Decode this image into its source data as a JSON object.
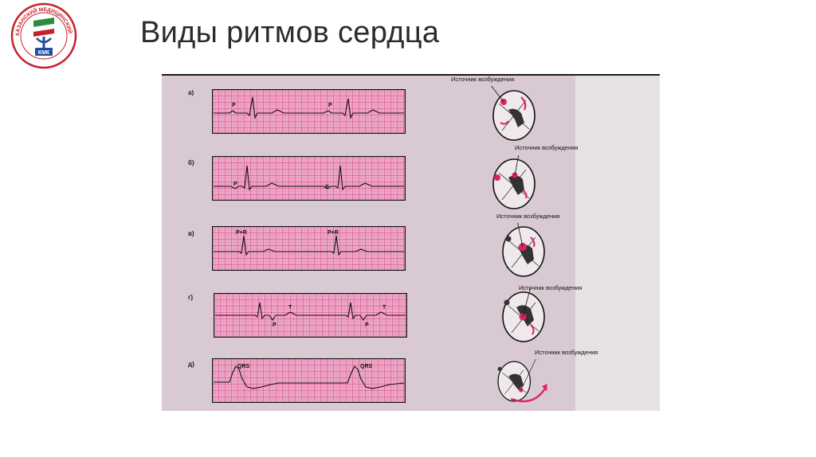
{
  "slide": {
    "title": "Виды ритмов сердца"
  },
  "logo": {
    "arc_text": "КАЗАНСКИЙ МЕДИЦИНСКИЙ КОЛЛЕДЖ",
    "monogram": "КМК"
  },
  "figure": {
    "rows": [
      {
        "letter": "а)",
        "source_label": "Источник возбуждения",
        "wave_labels": [
          "P",
          "P"
        ]
      },
      {
        "letter": "б)",
        "source_label": "Источник возбуждения",
        "wave_labels": [
          "P",
          "P"
        ]
      },
      {
        "letter": "в)",
        "source_label": "Источник возбуждения",
        "wave_labels": [
          "P+R",
          "P+R"
        ]
      },
      {
        "letter": "г)",
        "source_label": "Источник возбуждения",
        "wave_labels": [
          "T",
          "P",
          "T",
          "P"
        ]
      },
      {
        "letter": "д)",
        "source_label": "Источник возбуждения",
        "wave_labels": [
          "QRS",
          "QRS"
        ]
      }
    ]
  },
  "colors": {
    "ecg_paper": "#e9a7c6",
    "ecg_grid": "#e03a86",
    "figure_bg": "#d9c9d2",
    "heart_accent": "#e0206a"
  }
}
